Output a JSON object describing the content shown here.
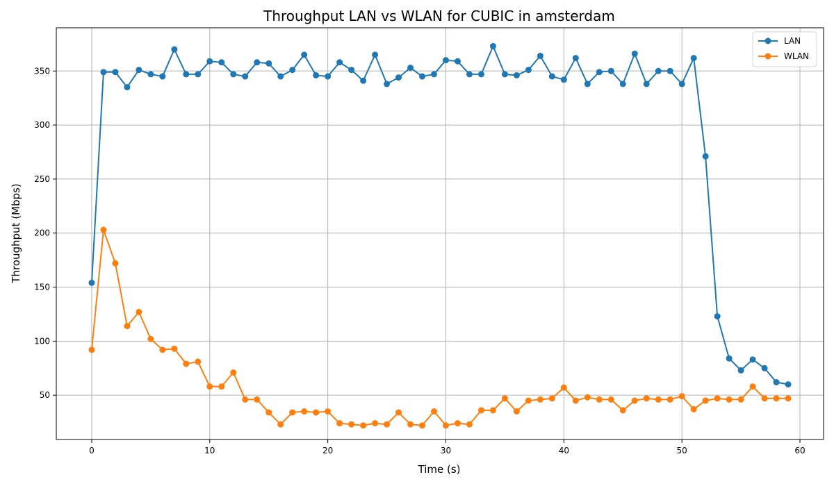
{
  "chart_data": {
    "type": "line",
    "title": "Throughput LAN vs WLAN for CUBIC in amsterdam",
    "xlabel": "Time (s)",
    "ylabel": "Throughput (Mbps)",
    "xlim": [
      -3,
      62
    ],
    "ylim": [
      9,
      390
    ],
    "x_ticks": [
      0,
      10,
      20,
      30,
      40,
      50,
      60
    ],
    "y_ticks": [
      50,
      100,
      150,
      200,
      250,
      300,
      350
    ],
    "grid": true,
    "legend_position": "top-right",
    "x": [
      0,
      1,
      2,
      3,
      4,
      5,
      6,
      7,
      8,
      9,
      10,
      11,
      12,
      13,
      14,
      15,
      16,
      17,
      18,
      19,
      20,
      21,
      22,
      23,
      24,
      25,
      26,
      27,
      28,
      29,
      30,
      31,
      32,
      33,
      34,
      35,
      36,
      37,
      38,
      39,
      40,
      41,
      42,
      43,
      44,
      45,
      46,
      47,
      48,
      49,
      50,
      51,
      52,
      53,
      54,
      55,
      56,
      57,
      58,
      59
    ],
    "series": [
      {
        "name": "LAN",
        "color": "#1f77b4",
        "values": [
          154,
          349,
          349,
          335,
          351,
          347,
          345,
          370,
          347,
          347,
          359,
          358,
          347,
          345,
          358,
          357,
          345,
          351,
          365,
          346,
          345,
          358,
          351,
          341,
          365,
          338,
          344,
          353,
          345,
          347,
          360,
          359,
          347,
          347,
          373,
          347,
          346,
          351,
          364,
          345,
          342,
          362,
          338,
          349,
          350,
          338,
          366,
          338,
          350,
          350,
          338,
          362,
          271,
          123,
          84,
          73,
          83,
          75,
          62,
          60
        ]
      },
      {
        "name": "WLAN",
        "color": "#ff7f0e",
        "values": [
          92,
          203,
          172,
          114,
          127,
          102,
          92,
          93,
          79,
          81,
          58,
          58,
          71,
          46,
          46,
          34,
          23,
          34,
          35,
          34,
          35,
          24,
          23,
          22,
          24,
          23,
          34,
          23,
          22,
          35,
          22,
          24,
          23,
          36,
          36,
          47,
          35,
          45,
          46,
          47,
          57,
          45,
          48,
          46,
          46,
          36,
          45,
          47,
          46,
          46,
          49,
          37,
          45,
          47,
          46,
          46,
          58,
          47,
          47,
          47
        ]
      }
    ]
  }
}
